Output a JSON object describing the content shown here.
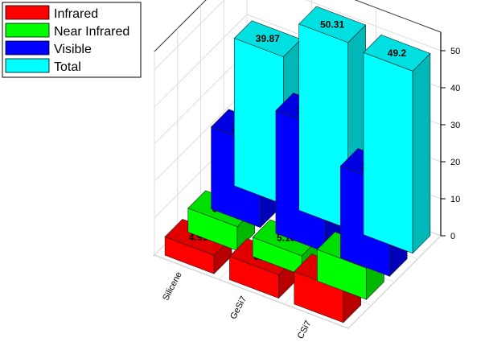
{
  "chart_data": {
    "type": "bar",
    "bar_style": "3d",
    "categories": [
      "CSi7",
      "GeSi7",
      "Silicene"
    ],
    "series": [
      {
        "name": "Infrared",
        "values": [
          8.78,
          6.31,
          4.99
        ],
        "color": "#ff0000"
      },
      {
        "name": "Near Infrared",
        "values": [
          8.48,
          5.18,
          6.46
        ],
        "color": "#00ff00"
      },
      {
        "name": "Visible",
        "values": [
          24.78,
          33.18,
          22.16
        ],
        "color": "#0000ff"
      },
      {
        "name": "Total",
        "values": [
          49.2,
          50.31,
          39.87
        ],
        "color": "#00ffff"
      }
    ],
    "zlim": [
      0,
      55
    ],
    "zticks": [
      0,
      10,
      20,
      30,
      40,
      50
    ],
    "grid": true,
    "legend_position": "top-left",
    "title": "",
    "xlabel": "",
    "ylabel": "",
    "zlabel": ""
  }
}
